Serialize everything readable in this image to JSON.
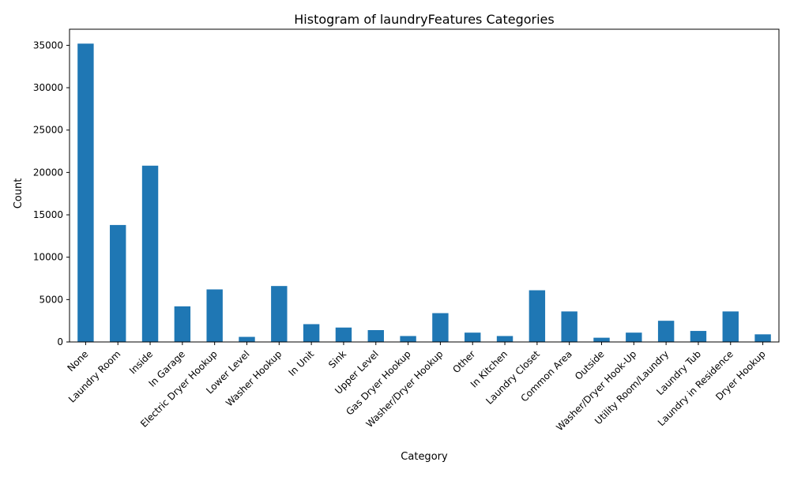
{
  "chart_data": {
    "type": "bar",
    "title": "Histogram of laundryFeatures Categories",
    "xlabel": "Category",
    "ylabel": "Count",
    "ylim": [
      0,
      36900
    ],
    "yticks": [
      0,
      5000,
      10000,
      15000,
      20000,
      25000,
      30000,
      35000
    ],
    "grid": false,
    "bar_color": "#1f77b4",
    "categories": [
      "None",
      "Laundry Room",
      "Inside",
      "In Garage",
      "Electric Dryer Hookup",
      "Lower Level",
      "Washer Hookup",
      "In Unit",
      "Sink",
      "Upper Level",
      "Gas Dryer Hookup",
      "Washer/Dryer Hookup",
      "Other",
      "In Kitchen",
      "Laundry Closet",
      "Common Area",
      "Outside",
      "Washer/Dryer Hook-Up",
      "Utility Room/Laundry",
      "Laundry Tub",
      "Laundry in Residence",
      "Dryer Hookup"
    ],
    "values": [
      35200,
      13800,
      20800,
      4200,
      6200,
      600,
      6600,
      2100,
      1700,
      1400,
      700,
      3400,
      1100,
      700,
      6100,
      3600,
      500,
      1100,
      2500,
      1300,
      3600,
      900
    ]
  }
}
